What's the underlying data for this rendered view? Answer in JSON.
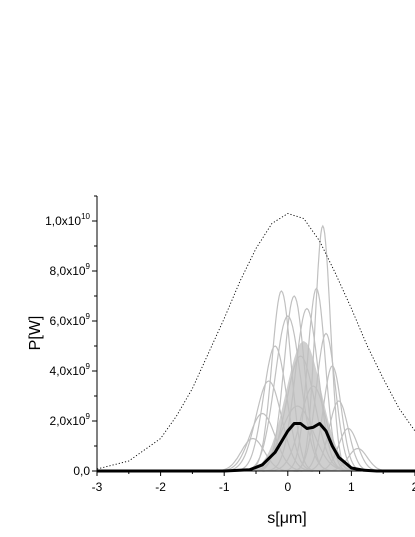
{
  "chart_data": {
    "type": "line",
    "title": "",
    "xlabel": "s[μm]",
    "ylabel": "P[W]",
    "xlim": [
      -3,
      2
    ],
    "ylim": [
      0,
      11000000000.0
    ],
    "x_ticks": [
      {
        "value": -3,
        "label": "-3"
      },
      {
        "value": -2,
        "label": "-2"
      },
      {
        "value": -1,
        "label": "-1"
      },
      {
        "value": 0,
        "label": "0"
      },
      {
        "value": 1,
        "label": "1"
      },
      {
        "value": 2,
        "label": "2"
      }
    ],
    "y_ticks": [
      {
        "value": 0,
        "mantissa": "0,0",
        "exp": ""
      },
      {
        "value": 2000000000.0,
        "mantissa": "2,0x10",
        "exp": "9"
      },
      {
        "value": 4000000000.0,
        "mantissa": "4,0x10",
        "exp": "9"
      },
      {
        "value": 6000000000.0,
        "mantissa": "6,0x10",
        "exp": "9"
      },
      {
        "value": 8000000000.0,
        "mantissa": "8,0x10",
        "exp": "9"
      },
      {
        "value": 10000000000.0,
        "mantissa": "1,0x10",
        "exp": "10"
      }
    ],
    "grid": false,
    "legend": "none",
    "colors": {
      "shots": "#c0c0c0",
      "average": "#000000",
      "envelope": "#000000"
    },
    "series": [
      {
        "role": "average",
        "style": "thick-solid",
        "x": [
          -3.0,
          -1.0,
          -0.6,
          -0.4,
          -0.2,
          0.0,
          0.1,
          0.2,
          0.3,
          0.4,
          0.5,
          0.6,
          0.7,
          0.8,
          1.0,
          1.2,
          1.4,
          2.0
        ],
        "y": [
          0,
          0,
          50000000.0,
          250000000.0,
          750000000.0,
          1600000000.0,
          1900000000.0,
          1900000000.0,
          1700000000.0,
          1750000000.0,
          1900000000.0,
          1600000000.0,
          1000000000.0,
          550000000.0,
          120000000.0,
          30000000.0,
          0,
          0
        ]
      },
      {
        "role": "envelope",
        "style": "dotted",
        "x": [
          -3.0,
          -2.5,
          -2.0,
          -1.75,
          -1.5,
          -1.25,
          -1.0,
          -0.75,
          -0.5,
          -0.25,
          0.0,
          0.25,
          0.5,
          0.75,
          1.0,
          1.25,
          1.5,
          1.75,
          2.0
        ],
        "y": [
          80000000.0,
          400000000.0,
          1300000000.0,
          2200000000.0,
          3300000000.0,
          4700000000.0,
          6100000000.0,
          7600000000.0,
          8900000000.0,
          9900000000.0,
          10300000000.0,
          10100000000.0,
          9200000000.0,
          7900000000.0,
          6500000000.0,
          5000000000.0,
          3700000000.0,
          2500000000.0,
          1600000000.0
        ]
      },
      {
        "role": "shots",
        "style": "thin-light-gray",
        "description_peaks": [
          {
            "center": 0.55,
            "peak": 9800000000.0,
            "width": 0.12
          },
          {
            "center": -0.1,
            "peak": 7200000000.0,
            "width": 0.15
          },
          {
            "center": 0.45,
            "peak": 7300000000.0,
            "width": 0.14
          },
          {
            "center": 0.1,
            "peak": 7000000000.0,
            "width": 0.16
          },
          {
            "center": 0.3,
            "peak": 6500000000.0,
            "width": 0.18
          },
          {
            "center": 0.0,
            "peak": 6200000000.0,
            "width": 0.2
          },
          {
            "center": 0.6,
            "peak": 5500000000.0,
            "width": 0.15
          },
          {
            "center": -0.2,
            "peak": 5000000000.0,
            "width": 0.18
          },
          {
            "center": 0.2,
            "peak": 4600000000.0,
            "width": 0.22
          },
          {
            "center": 0.7,
            "peak": 4200000000.0,
            "width": 0.14
          },
          {
            "center": -0.3,
            "peak": 3600000000.0,
            "width": 0.2
          },
          {
            "center": 0.4,
            "peak": 3400000000.0,
            "width": 0.2
          },
          {
            "center": 0.8,
            "peak": 2800000000.0,
            "width": 0.15
          },
          {
            "center": -0.4,
            "peak": 2300000000.0,
            "width": 0.2
          },
          {
            "center": 0.15,
            "peak": 2600000000.0,
            "width": 0.25
          },
          {
            "center": 0.95,
            "peak": 1700000000.0,
            "width": 0.15
          },
          {
            "center": -0.55,
            "peak": 1300000000.0,
            "width": 0.18
          },
          {
            "center": 1.1,
            "peak": 900000000.0,
            "width": 0.15
          }
        ]
      }
    ]
  }
}
